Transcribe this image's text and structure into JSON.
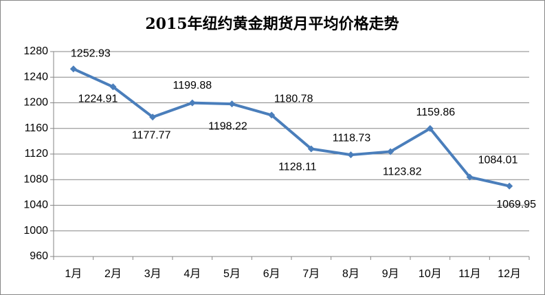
{
  "chart_data": {
    "type": "line",
    "title": "2015年纽约黄金期货月平均价格走势",
    "categories": [
      "1月",
      "2月",
      "3月",
      "4月",
      "5月",
      "6月",
      "7月",
      "8月",
      "9月",
      "10月",
      "11月",
      "12月"
    ],
    "series": [
      {
        "color": "#4a7ebb",
        "values": [
          1252.93,
          1224.91,
          1177.77,
          1199.88,
          1198.22,
          1180.78,
          1128.11,
          1118.73,
          1123.82,
          1159.86,
          1084.01,
          1069.95
        ]
      }
    ],
    "ylim": [
      960,
      1280
    ],
    "yticks": [
      960,
      1000,
      1040,
      1080,
      1120,
      1160,
      1200,
      1240,
      1280
    ],
    "grid": true
  }
}
